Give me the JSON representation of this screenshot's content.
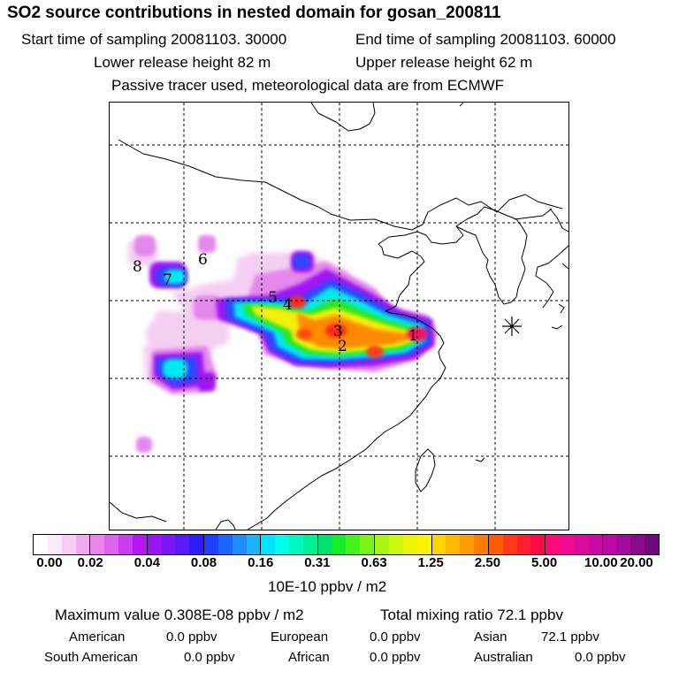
{
  "header": {
    "title": "SO2 source contributions in nested domain for gosan_200811",
    "start_time": "Start time of sampling 20081103. 30000",
    "end_time": "End time of sampling 20081103. 60000",
    "lower_height": "Lower release height   82 m",
    "upper_height": "Upper release height   62 m",
    "note": "Passive tracer used, meteorological data are from ECMWF"
  },
  "map": {
    "receptor_symbol": "asterisk",
    "source_labels": [
      "1",
      "2",
      "3",
      "4",
      "5",
      "6",
      "7",
      "8"
    ]
  },
  "legend": {
    "ticks": [
      "0.00",
      "0.02",
      "0.04",
      "0.08",
      "0.16",
      "0.31",
      "0.63",
      "1.25",
      "2.50",
      "5.00",
      "10.00",
      "20.00"
    ],
    "colors": [
      [
        "#ffffff",
        "#fde8fb",
        "#f8ccf5",
        "#f1a9ef"
      ],
      [
        "#e986ec",
        "#dd63ec",
        "#cb3def",
        "#b417f0"
      ],
      [
        "#9a14f3",
        "#7d16f6",
        "#5a1af7",
        "#2f1cf6"
      ],
      [
        "#1c40ff",
        "#1d65ff",
        "#1d8dff",
        "#1cb4ff"
      ],
      [
        "#00e5ff",
        "#00ffea",
        "#00f7c0",
        "#00f098"
      ],
      [
        "#00e070",
        "#14ec2c",
        "#48f21a",
        "#7ef214"
      ],
      [
        "#a8f511",
        "#cdf70c",
        "#ecf40a",
        "#fff200"
      ],
      [
        "#ffd600",
        "#ffb900",
        "#ff9c00",
        "#ff7e00"
      ],
      [
        "#ff5a00",
        "#ff3a1a",
        "#ff1e2d",
        "#ff0a46"
      ],
      [
        "#ff0a78",
        "#ee0a92",
        "#dd0a9e",
        "#cc0aa6"
      ],
      [
        "#bb0aa4",
        "#a30a9a",
        "#8a0a8e",
        "#6e0a7e"
      ]
    ],
    "unit": "10E-10 ppbv / m2"
  },
  "stats": {
    "max_value": "Maximum value  0.308E-08 ppbv / m2",
    "total": "Total mixing ratio       72.1 ppbv",
    "rows": [
      [
        "American",
        "0.0 ppbv",
        "European",
        "0.0 ppbv",
        "Asian",
        "72.1 ppbv"
      ],
      [
        "South American",
        "0.0 ppbv",
        "African",
        "0.0 ppbv",
        "Australian",
        "0.0 ppbv"
      ]
    ]
  }
}
